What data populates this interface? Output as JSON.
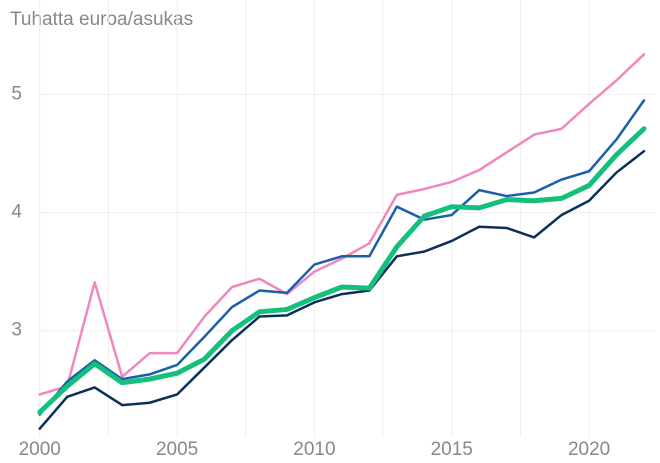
{
  "chart_data": {
    "type": "line",
    "title": "Tuhatta euroa/asukas",
    "x": [
      2000,
      2001,
      2002,
      2003,
      2004,
      2005,
      2006,
      2007,
      2008,
      2009,
      2010,
      2011,
      2012,
      2013,
      2014,
      2015,
      2016,
      2017,
      2018,
      2019,
      2020,
      2021,
      2022
    ],
    "series": [
      {
        "color": "#ef88bf",
        "values": [
          2.46,
          2.53,
          3.41,
          2.61,
          2.81,
          2.81,
          3.12,
          3.37,
          3.44,
          3.31,
          3.5,
          3.61,
          3.74,
          4.15,
          4.2,
          4.26,
          4.36,
          4.51,
          4.66,
          4.71,
          4.92,
          5.12,
          5.34
        ]
      },
      {
        "color": "#1b5fa8",
        "values": [
          2.29,
          2.57,
          2.75,
          2.59,
          2.63,
          2.71,
          2.95,
          3.2,
          3.34,
          3.32,
          3.56,
          3.63,
          3.63,
          4.05,
          3.94,
          3.98,
          4.19,
          4.14,
          4.17,
          4.28,
          4.35,
          4.62,
          4.95
        ]
      },
      {
        "color": "#0d2f5a",
        "values": [
          2.17,
          2.44,
          2.52,
          2.37,
          2.39,
          2.46,
          2.69,
          2.92,
          3.12,
          3.13,
          3.24,
          3.31,
          3.34,
          3.63,
          3.67,
          3.76,
          3.88,
          3.87,
          3.79,
          3.98,
          4.1,
          4.34,
          4.52
        ]
      },
      {
        "color": "#14c07c",
        "width": 5,
        "values": [
          2.31,
          2.53,
          2.72,
          2.56,
          2.59,
          2.64,
          2.76,
          3.0,
          3.16,
          3.18,
          3.28,
          3.37,
          3.36,
          3.71,
          3.97,
          4.05,
          4.04,
          4.11,
          4.1,
          4.12,
          4.23,
          4.49,
          4.71
        ]
      }
    ],
    "xlim": [
      1999.9,
      2022.4
    ],
    "xticks": [
      2000,
      2005,
      2010,
      2015,
      2020
    ],
    "xminorticks": [
      2002.5,
      2007.5,
      2012.5,
      2017.5
    ],
    "ylim": [
      2.1,
      5.8
    ],
    "yticks": [
      3,
      4,
      5
    ],
    "grid": true
  }
}
